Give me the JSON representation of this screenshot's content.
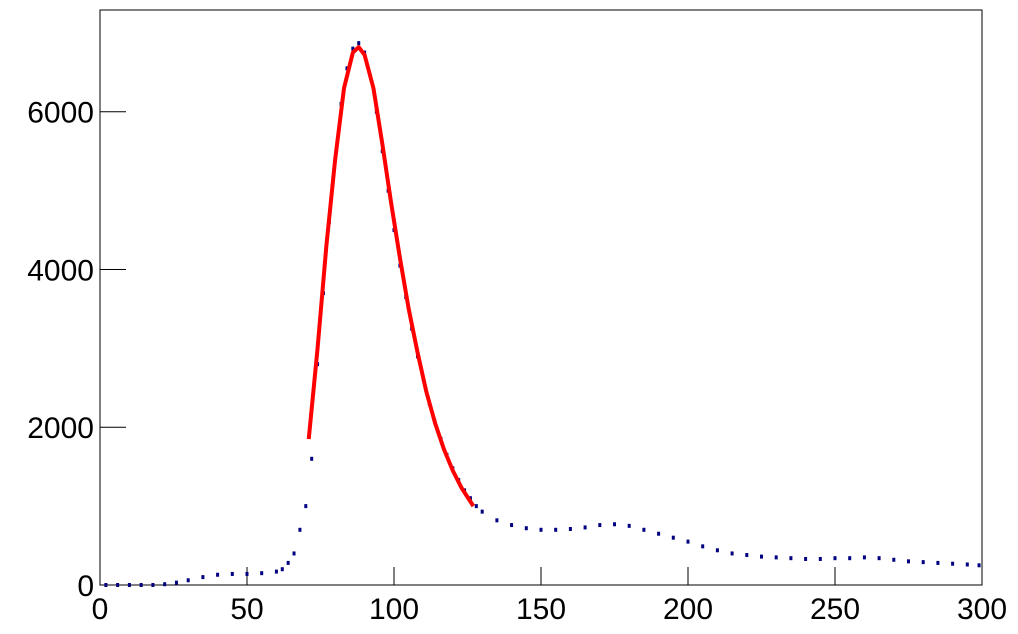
{
  "chart_data": {
    "type": "scatter",
    "xlim": [
      0,
      300
    ],
    "xticks": [
      0,
      50,
      100,
      150,
      200,
      250,
      300
    ],
    "ylim": [
      0,
      7290
    ],
    "yticks": [
      0,
      2000,
      4000,
      6000
    ],
    "series": [
      {
        "color": "#000080",
        "marker": "point",
        "x": [
          2,
          6,
          10,
          14,
          18,
          22,
          26,
          30,
          35,
          40,
          45,
          50,
          55,
          60,
          62,
          64,
          66,
          68,
          70,
          72,
          74,
          76,
          78,
          80,
          82,
          84,
          86,
          88,
          90,
          92,
          94,
          96,
          98,
          100,
          102,
          104,
          106,
          108,
          110,
          112,
          114,
          116,
          118,
          120,
          122,
          124,
          126,
          128,
          130,
          135,
          140,
          145,
          150,
          155,
          160,
          165,
          170,
          175,
          180,
          185,
          190,
          195,
          200,
          205,
          210,
          215,
          220,
          225,
          230,
          235,
          240,
          245,
          250,
          255,
          260,
          265,
          270,
          275,
          280,
          285,
          290,
          295,
          299
        ],
        "values": [
          0,
          0,
          0,
          0,
          0,
          10,
          30,
          60,
          100,
          130,
          140,
          140,
          150,
          170,
          200,
          280,
          400,
          700,
          1000,
          1600,
          2800,
          3700,
          4600,
          5400,
          6100,
          6550,
          6800,
          6870,
          6750,
          6450,
          6000,
          5500,
          5000,
          4500,
          4050,
          3650,
          3250,
          2900,
          2600,
          2300,
          2050,
          1850,
          1650,
          1480,
          1330,
          1200,
          1100,
          1000,
          930,
          820,
          760,
          720,
          700,
          700,
          710,
          730,
          760,
          770,
          750,
          700,
          650,
          600,
          550,
          490,
          440,
          400,
          380,
          360,
          350,
          340,
          330,
          330,
          340,
          340,
          350,
          340,
          320,
          300,
          290,
          280,
          270,
          260,
          250
        ]
      },
      {
        "color": "#ff0000",
        "marker": "line",
        "x": [
          71,
          74,
          77,
          80,
          83,
          86,
          88,
          90,
          93,
          96,
          99,
          102,
          105,
          108,
          111,
          114,
          117,
          120,
          123,
          127
        ],
        "values": [
          1850,
          3000,
          4300,
          5400,
          6300,
          6750,
          6820,
          6720,
          6300,
          5600,
          4850,
          4150,
          3500,
          2950,
          2450,
          2050,
          1720,
          1450,
          1230,
          1000
        ]
      }
    ]
  }
}
